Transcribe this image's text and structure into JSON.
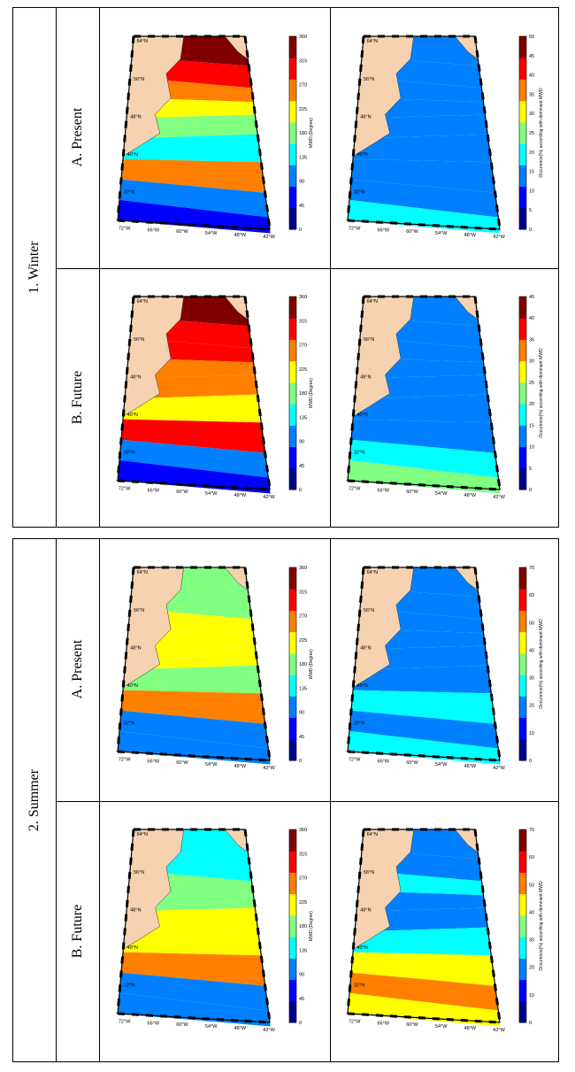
{
  "seasons": [
    {
      "label": "1.  Winter",
      "rows": [
        {
          "label": "A.  Present",
          "mwd": {
            "ticks": [
              "0",
              "45",
              "90",
              "135",
              "180",
              "225",
              "270",
              "315",
              "360"
            ],
            "title": "MWD (Degree)"
          },
          "occ": {
            "ticks": [
              "0",
              "5",
              "10",
              "15",
              "20",
              "25",
              "30",
              "35",
              "40",
              "45",
              "50"
            ],
            "title": "Occurence(%) according with dominant MWD"
          }
        },
        {
          "label": "B.  Future",
          "mwd": {
            "ticks": [
              "0",
              "45",
              "90",
              "135",
              "180",
              "225",
              "270",
              "315",
              "360"
            ],
            "title": "MWD (Degree)"
          },
          "occ": {
            "ticks": [
              "0",
              "5",
              "10",
              "15",
              "20",
              "25",
              "30",
              "35",
              "40",
              "45"
            ],
            "title": "Occurence(%) according with dominant MWD"
          }
        }
      ]
    },
    {
      "label": "2.  Summer",
      "rows": [
        {
          "label": "A.  Present",
          "mwd": {
            "ticks": [
              "0",
              "45",
              "90",
              "135",
              "180",
              "225",
              "270",
              "315",
              "360"
            ],
            "title": "MWD (Degree)"
          },
          "occ": {
            "ticks": [
              "0",
              "10",
              "20",
              "30",
              "40",
              "50",
              "60",
              "70"
            ],
            "title": "Occurence(%) according with dominant MWD"
          }
        },
        {
          "label": "B.  Future",
          "mwd": {
            "ticks": [
              "0",
              "45",
              "90",
              "135",
              "180",
              "225",
              "270",
              "315",
              "360"
            ],
            "title": "MWD (Degree)"
          },
          "occ": {
            "ticks": [
              "0",
              "10",
              "20",
              "30",
              "40",
              "50",
              "60",
              "70"
            ],
            "title": "Occurence(%) according with dominant MWD"
          }
        }
      ]
    }
  ],
  "map_axes": {
    "lat_labels": [
      "64°N",
      "56°N",
      "48°N",
      "40°N",
      "32°N"
    ],
    "lon_labels": [
      "72°W",
      "66°W",
      "60°W",
      "54°W",
      "48°W",
      "42°W"
    ]
  },
  "colors": {
    "land": "#f6d2b0",
    "jet": [
      "#00008f",
      "#0000ff",
      "#0080ff",
      "#00ffff",
      "#80ff80",
      "#ffff00",
      "#ff8000",
      "#ff0000",
      "#800000"
    ]
  }
}
